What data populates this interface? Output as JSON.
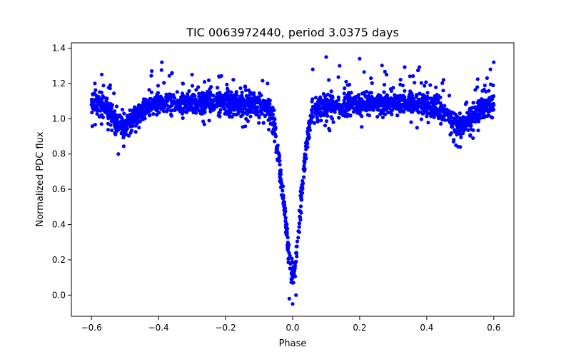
{
  "chart_data": {
    "type": "scatter",
    "title": "TIC 0063972440, period 3.0375 days",
    "xlabel": "Phase",
    "ylabel": "Normalized PDC flux",
    "xlim": [
      -0.66,
      0.66
    ],
    "ylim": [
      -0.12,
      1.43
    ],
    "xticks": [
      -0.6,
      -0.4,
      -0.2,
      0.0,
      0.2,
      0.4,
      0.6
    ],
    "xtick_labels": [
      "−0.6",
      "−0.4",
      "−0.2",
      "0.0",
      "0.2",
      "0.4",
      "0.6"
    ],
    "yticks": [
      0.0,
      0.2,
      0.4,
      0.6,
      0.8,
      1.0,
      1.2,
      1.4
    ],
    "ytick_labels": [
      "0.0",
      "0.2",
      "0.4",
      "0.6",
      "0.8",
      "1.0",
      "1.2",
      "1.4"
    ],
    "grid": false,
    "marker_color": "#0000ff",
    "series": [
      {
        "x_range": [
          -0.6,
          0.6
        ],
        "points": [
          [
            -0.6,
            1.08
          ],
          [
            -0.58,
            1.1
          ],
          [
            -0.56,
            1.06
          ],
          [
            -0.54,
            1.02
          ],
          [
            -0.52,
            0.97
          ],
          [
            -0.5,
            0.95
          ],
          [
            -0.48,
            0.99
          ],
          [
            -0.46,
            1.03
          ],
          [
            -0.44,
            1.06
          ],
          [
            -0.42,
            1.07
          ],
          [
            -0.4,
            1.08
          ],
          [
            -0.35,
            1.09
          ],
          [
            -0.3,
            1.09
          ],
          [
            -0.25,
            1.1
          ],
          [
            -0.2,
            1.09
          ],
          [
            -0.15,
            1.09
          ],
          [
            -0.1,
            1.08
          ],
          [
            -0.07,
            1.06
          ],
          [
            -0.06,
            1.0
          ],
          [
            -0.05,
            0.9
          ],
          [
            -0.04,
            0.75
          ],
          [
            -0.03,
            0.58
          ],
          [
            -0.02,
            0.4
          ],
          [
            -0.01,
            0.22
          ],
          [
            0.0,
            0.08
          ],
          [
            0.01,
            0.2
          ],
          [
            0.02,
            0.42
          ],
          [
            0.03,
            0.65
          ],
          [
            0.04,
            0.84
          ],
          [
            0.05,
            0.96
          ],
          [
            0.06,
            1.03
          ],
          [
            0.08,
            1.06
          ],
          [
            0.1,
            1.07
          ],
          [
            0.15,
            1.08
          ],
          [
            0.2,
            1.09
          ],
          [
            0.25,
            1.09
          ],
          [
            0.3,
            1.09
          ],
          [
            0.35,
            1.09
          ],
          [
            0.4,
            1.08
          ],
          [
            0.42,
            1.07
          ],
          [
            0.44,
            1.06
          ],
          [
            0.46,
            1.02
          ],
          [
            0.48,
            0.98
          ],
          [
            0.5,
            0.95
          ],
          [
            0.52,
            0.98
          ],
          [
            0.54,
            1.02
          ],
          [
            0.56,
            1.05
          ],
          [
            0.58,
            1.07
          ],
          [
            0.6,
            1.08
          ]
        ],
        "outliers": [
          [
            -0.39,
            1.32
          ],
          [
            -0.42,
            1.27
          ],
          [
            -0.36,
            1.26
          ],
          [
            -0.3,
            1.25
          ],
          [
            -0.22,
            1.24
          ],
          [
            -0.52,
            0.8
          ],
          [
            -0.57,
            0.97
          ],
          [
            -0.59,
            1.2
          ],
          [
            0.1,
            1.35
          ],
          [
            0.2,
            1.34
          ],
          [
            0.14,
            1.3
          ],
          [
            0.06,
            1.28
          ],
          [
            0.28,
            1.25
          ],
          [
            0.35,
            1.24
          ],
          [
            0.45,
            1.22
          ],
          [
            0.58,
            1.23
          ],
          [
            0.6,
            1.32
          ],
          [
            0.59,
            1.28
          ],
          [
            0.5,
            0.84
          ],
          [
            0.48,
            0.87
          ],
          [
            0.0,
            -0.05
          ],
          [
            -0.01,
            -0.02
          ],
          [
            0.01,
            0.0
          ]
        ]
      }
    ]
  }
}
